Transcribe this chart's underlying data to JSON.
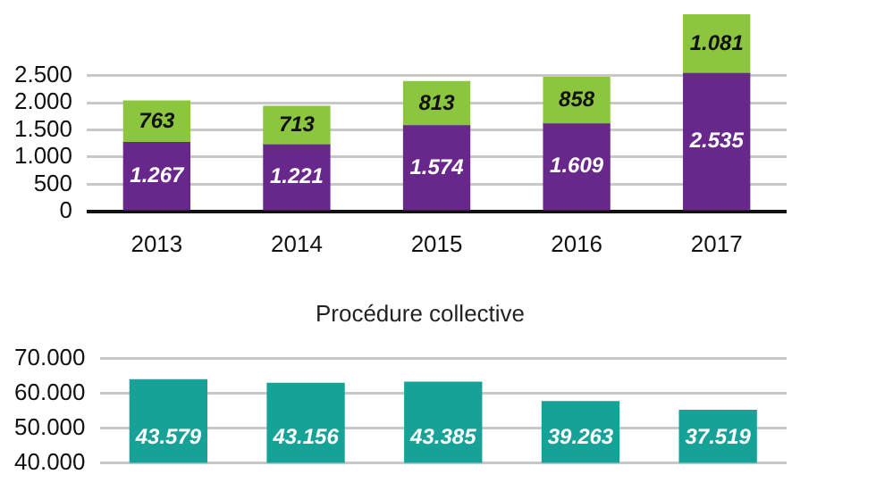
{
  "chart_data": [
    {
      "type": "bar",
      "stacked": true,
      "categories": [
        "2013",
        "2014",
        "2015",
        "2016",
        "2017"
      ],
      "series": [
        {
          "color": "#68278a",
          "values": [
            1267,
            1221,
            1574,
            1609,
            2535
          ],
          "value_labels": [
            "1.267",
            "1.221",
            "1.574",
            "1.609",
            "2.535"
          ]
        },
        {
          "color": "#8cc63e",
          "values": [
            763,
            713,
            813,
            858,
            1081
          ],
          "value_labels": [
            "763",
            "713",
            "813",
            "858",
            "1.081"
          ]
        }
      ],
      "ylim": [
        0,
        3700
      ],
      "yticks": [
        0,
        500,
        {
          "value": 1000,
          "label": "1.000"
        },
        {
          "value": 1500,
          "label": "1.500"
        },
        {
          "value": 2000,
          "label": "2.000"
        },
        {
          "value": 2500,
          "label": "2.500"
        }
      ],
      "grid": "y"
    },
    {
      "type": "bar",
      "title": "Procédure collective",
      "categories": [
        null,
        null,
        null,
        null,
        null
      ],
      "series": [
        {
          "color": "#16a297",
          "values": [
            43579,
            43156,
            43385,
            39263,
            37519
          ],
          "base": [
            20300,
            19700,
            19800,
            18300,
            17600
          ],
          "value_labels": [
            "43.579",
            "43.156",
            "43.385",
            "39.263",
            "37.519"
          ]
        }
      ],
      "ylim": [
        40000,
        70000
      ],
      "yticks": [
        {
          "value": 40000,
          "label": "40.000"
        },
        {
          "value": 50000,
          "label": "50.000"
        },
        {
          "value": 60000,
          "label": "60.000"
        },
        {
          "value": 70000,
          "label": "70.000"
        }
      ],
      "grid": "y"
    }
  ]
}
